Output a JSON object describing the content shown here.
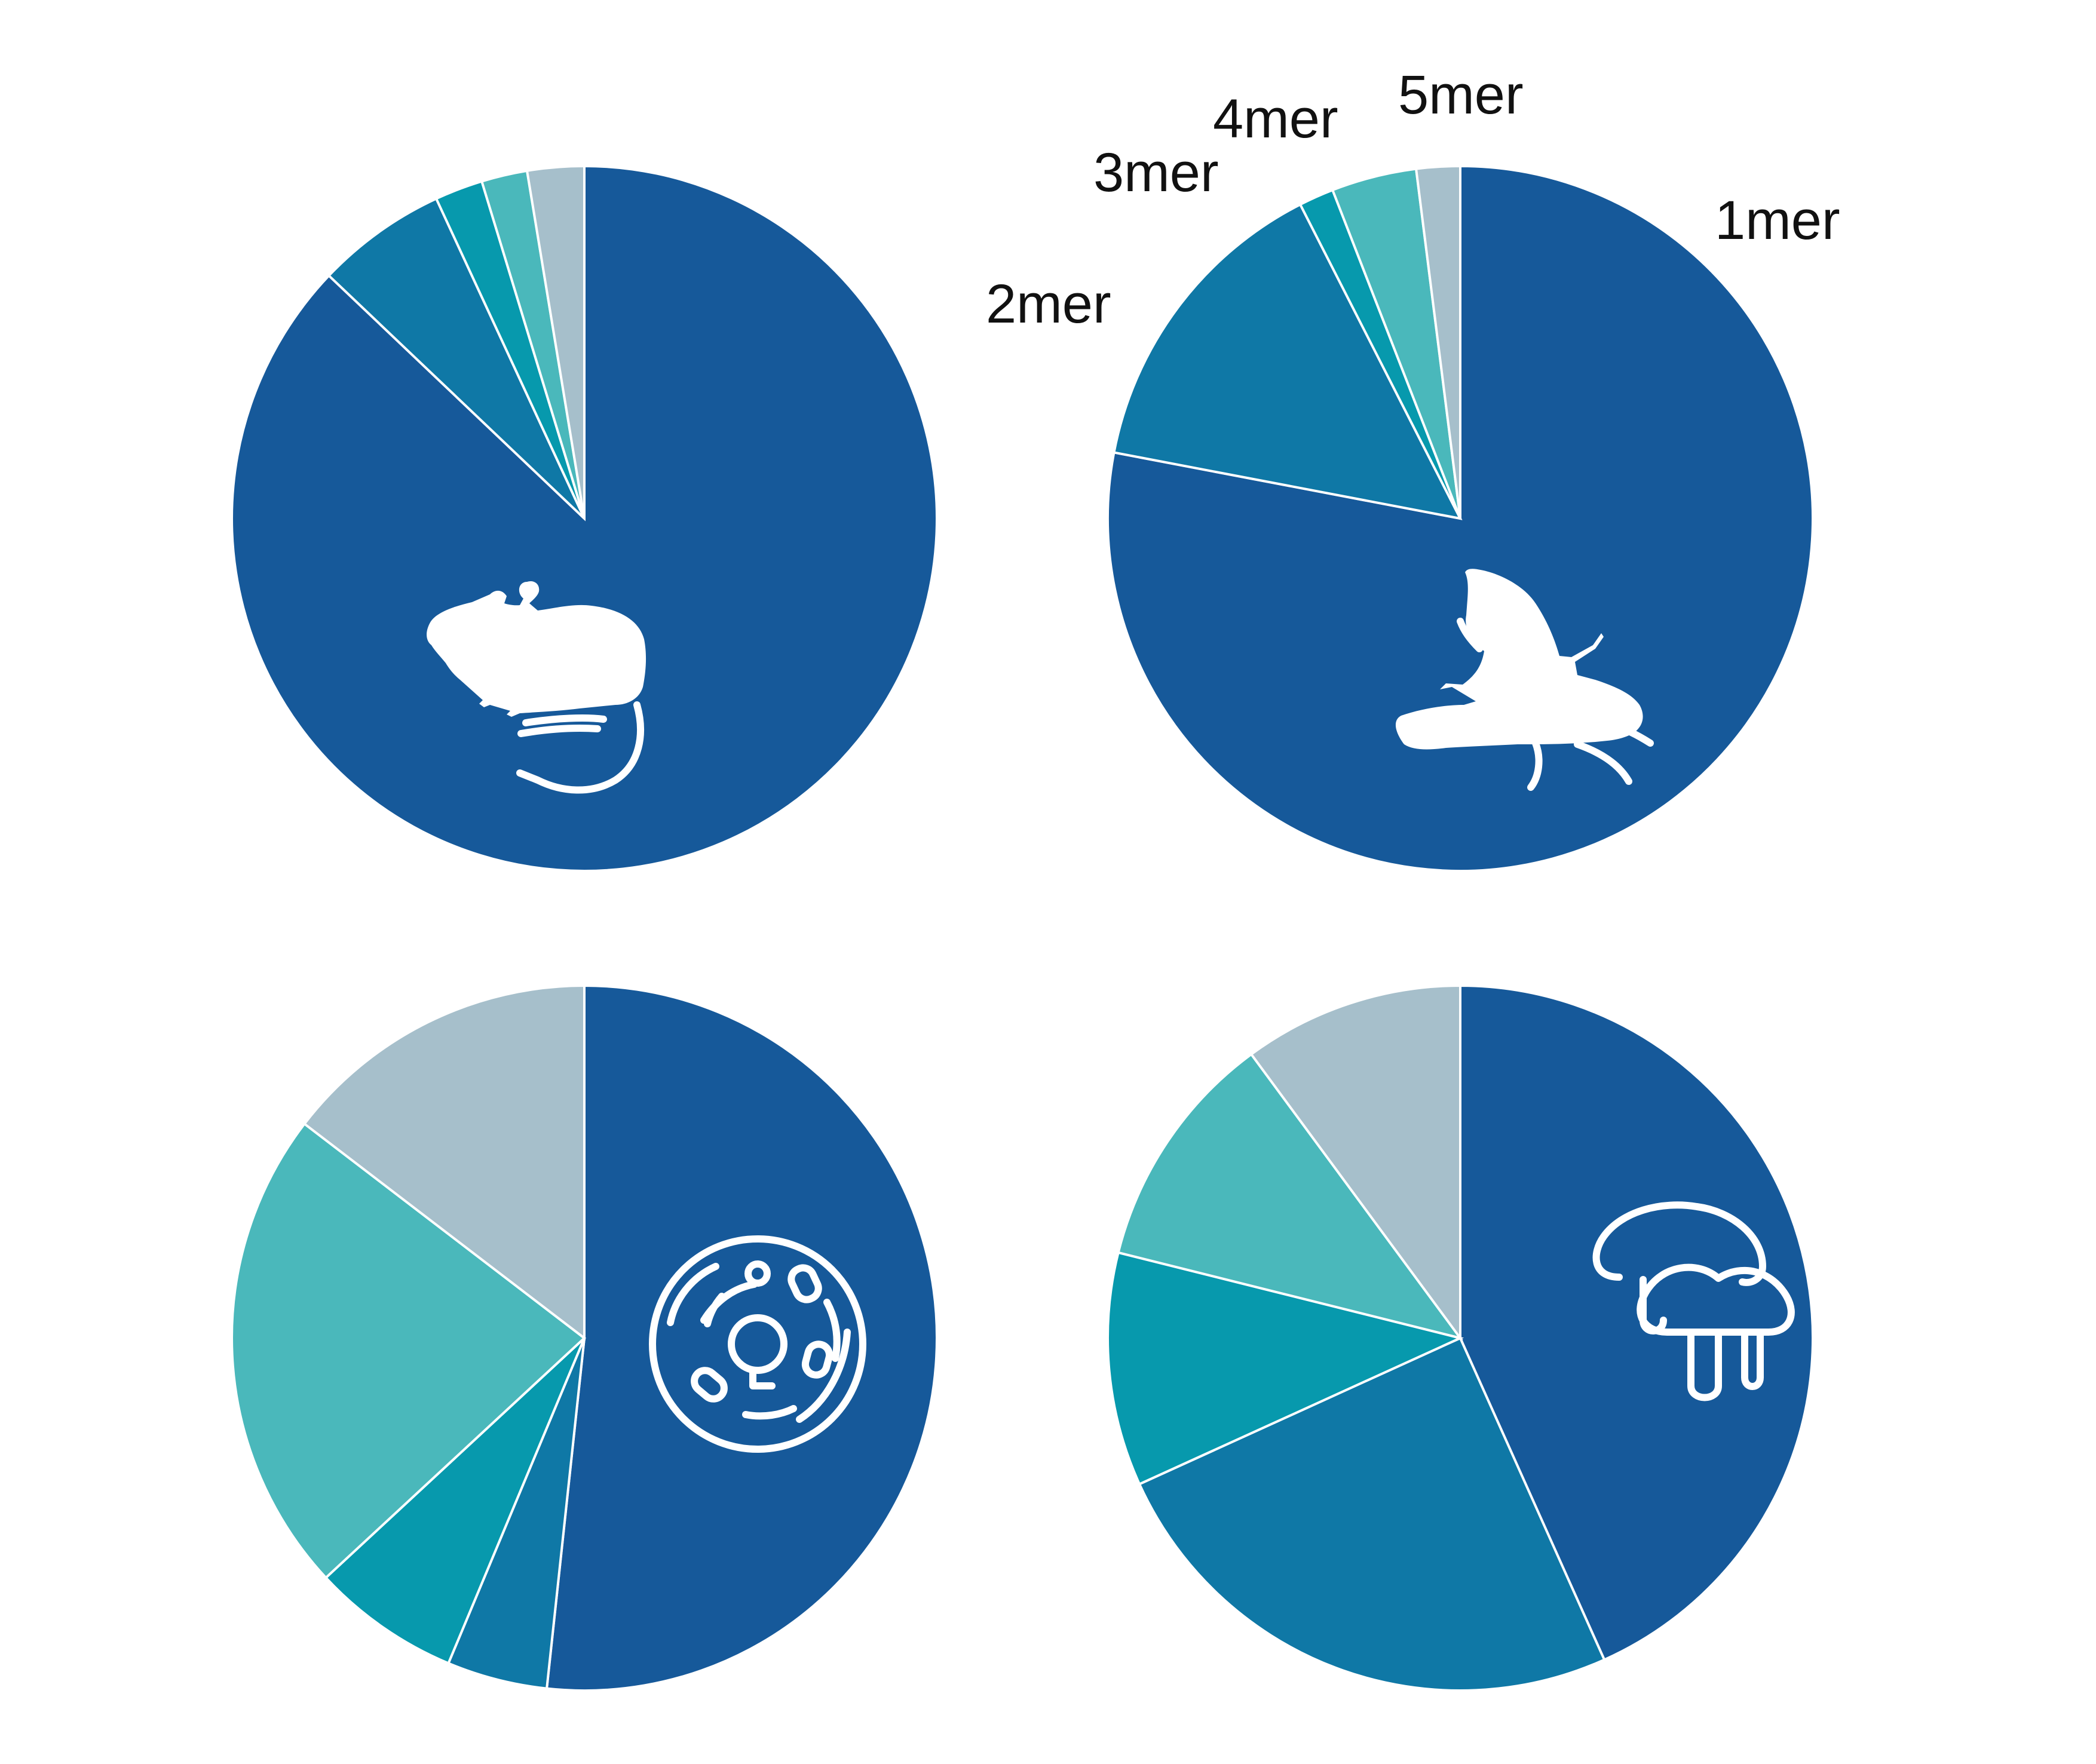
{
  "colors": {
    "1mer": "#16599a",
    "2mer": "#0f78a6",
    "3mer": "#0799ad",
    "4mer": "#4ab8bb",
    "5mer": "#a6bfcb",
    "icon": "#ffffff"
  },
  "chart_data": [
    {
      "type": "pie",
      "organism_icon": "mouse-icon",
      "categories": [
        "1mer",
        "2mer",
        "3mer",
        "4mer",
        "5mer"
      ],
      "values": [
        87.1,
        6.0,
        2.2,
        2.1,
        2.6
      ],
      "unit": "%"
    },
    {
      "type": "pie",
      "organism_icon": "fly-icon",
      "categories": [
        "1mer",
        "2mer",
        "3mer",
        "4mer",
        "5mer"
      ],
      "values": [
        78.0,
        14.5,
        1.6,
        3.9,
        2.0
      ],
      "unit": "%",
      "labels": {
        "1mer": "1mer",
        "2mer": "2mer",
        "3mer": "3mer",
        "4mer": "4mer",
        "5mer": "5mer"
      }
    },
    {
      "type": "pie",
      "organism_icon": "cell-icon",
      "categories": [
        "1mer",
        "2mer",
        "3mer",
        "4mer",
        "5mer"
      ],
      "values": [
        51.7,
        4.6,
        6.8,
        22.3,
        14.6
      ],
      "unit": "%"
    },
    {
      "type": "pie",
      "organism_icon": "mushroom-icon",
      "categories": [
        "1mer",
        "2mer",
        "3mer",
        "4mer",
        "5mer"
      ],
      "values": [
        43.3,
        24.9,
        10.7,
        11.0,
        10.1
      ],
      "unit": "%"
    }
  ]
}
